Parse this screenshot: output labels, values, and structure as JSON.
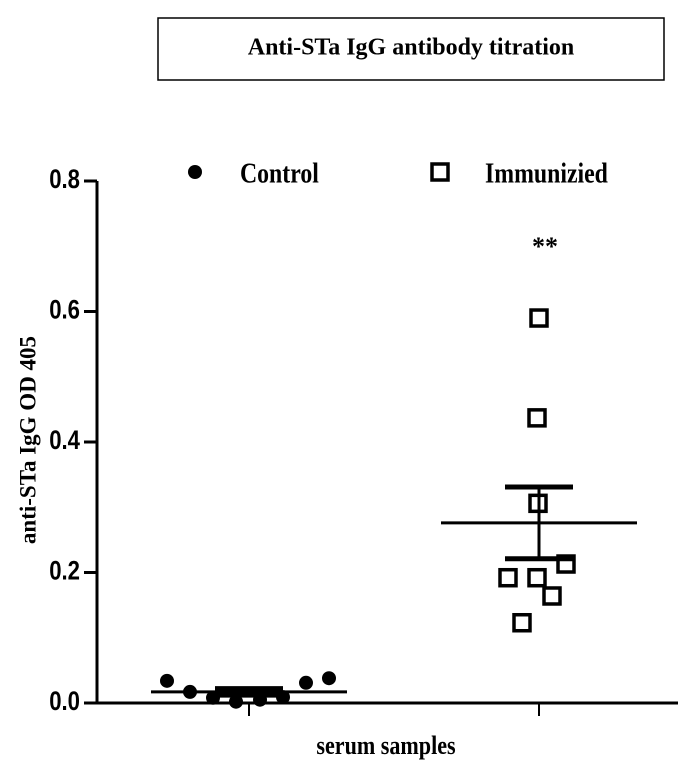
{
  "chart_data": {
    "type": "scatter",
    "title": "Anti-STa IgG antibody titration",
    "xlabel": "serum samples",
    "ylabel": "anti-STa IgG OD 405",
    "annotation": "**",
    "ylim": [
      0,
      0.8
    ],
    "yticks": [
      {
        "value": 0,
        "label": "0.0"
      },
      {
        "value": 0.2,
        "label": "0.2"
      },
      {
        "value": 0.4,
        "label": "0.4"
      },
      {
        "value": 0.6,
        "label": "0.6"
      },
      {
        "value": 0.8,
        "label": "0.8"
      }
    ],
    "series": [
      {
        "name": "Control",
        "marker": "circle",
        "color": "#000000",
        "values": [
          0.034,
          0.017,
          0.008,
          0.002,
          0.005,
          0.009,
          0.031,
          0.038
        ],
        "mean": 0.017,
        "error": 0.005
      },
      {
        "name": "Immunizied",
        "marker": "square",
        "color": "#000000",
        "values": [
          0.59,
          0.437,
          0.306,
          0.213,
          0.192,
          0.192,
          0.164,
          0.123
        ],
        "mean": 0.276,
        "error": 0.055
      }
    ]
  }
}
